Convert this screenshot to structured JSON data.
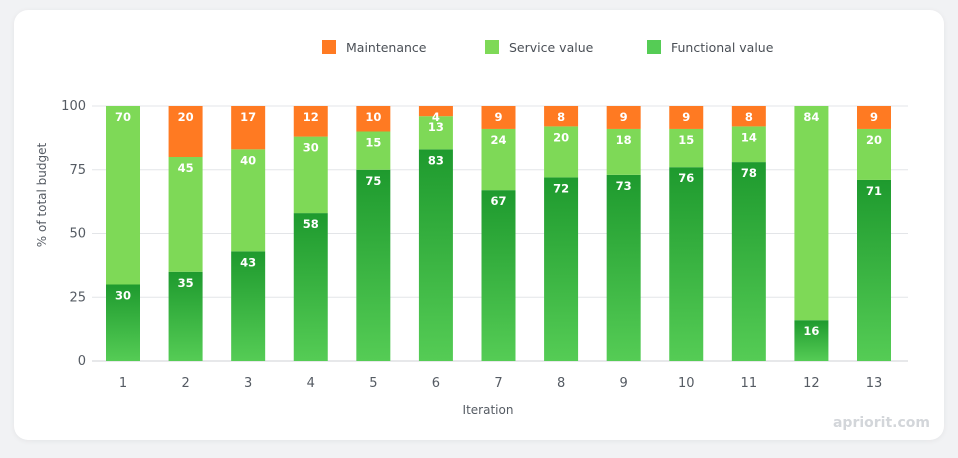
{
  "watermark": "apriorit.com",
  "colors": {
    "maintenance": "#ff7a22",
    "service": "#7ed957",
    "functional_top": "#1e9a2e",
    "functional_bottom": "#55cc55",
    "grid": "#e3e5e8"
  },
  "chart_data": {
    "type": "bar",
    "stacked": true,
    "xlabel": "Iteration",
    "ylabel": "% of total budget",
    "ylim": [
      0,
      100
    ],
    "yticks": [
      0,
      25,
      50,
      75,
      100
    ],
    "categories": [
      "1",
      "2",
      "3",
      "4",
      "5",
      "6",
      "7",
      "8",
      "9",
      "10",
      "11",
      "12",
      "13"
    ],
    "legend_position": "top",
    "series": [
      {
        "key": "functional",
        "name": "Functional value",
        "values": [
          30,
          35,
          43,
          58,
          75,
          83,
          67,
          72,
          73,
          76,
          78,
          16,
          71
        ]
      },
      {
        "key": "service",
        "name": "Service value",
        "values": [
          70,
          45,
          40,
          30,
          15,
          13,
          24,
          20,
          18,
          15,
          14,
          84,
          20
        ]
      },
      {
        "key": "maintenance",
        "name": "Maintenance",
        "values": [
          0,
          20,
          17,
          12,
          10,
          4,
          9,
          8,
          9,
          9,
          8,
          0,
          9
        ]
      }
    ]
  }
}
